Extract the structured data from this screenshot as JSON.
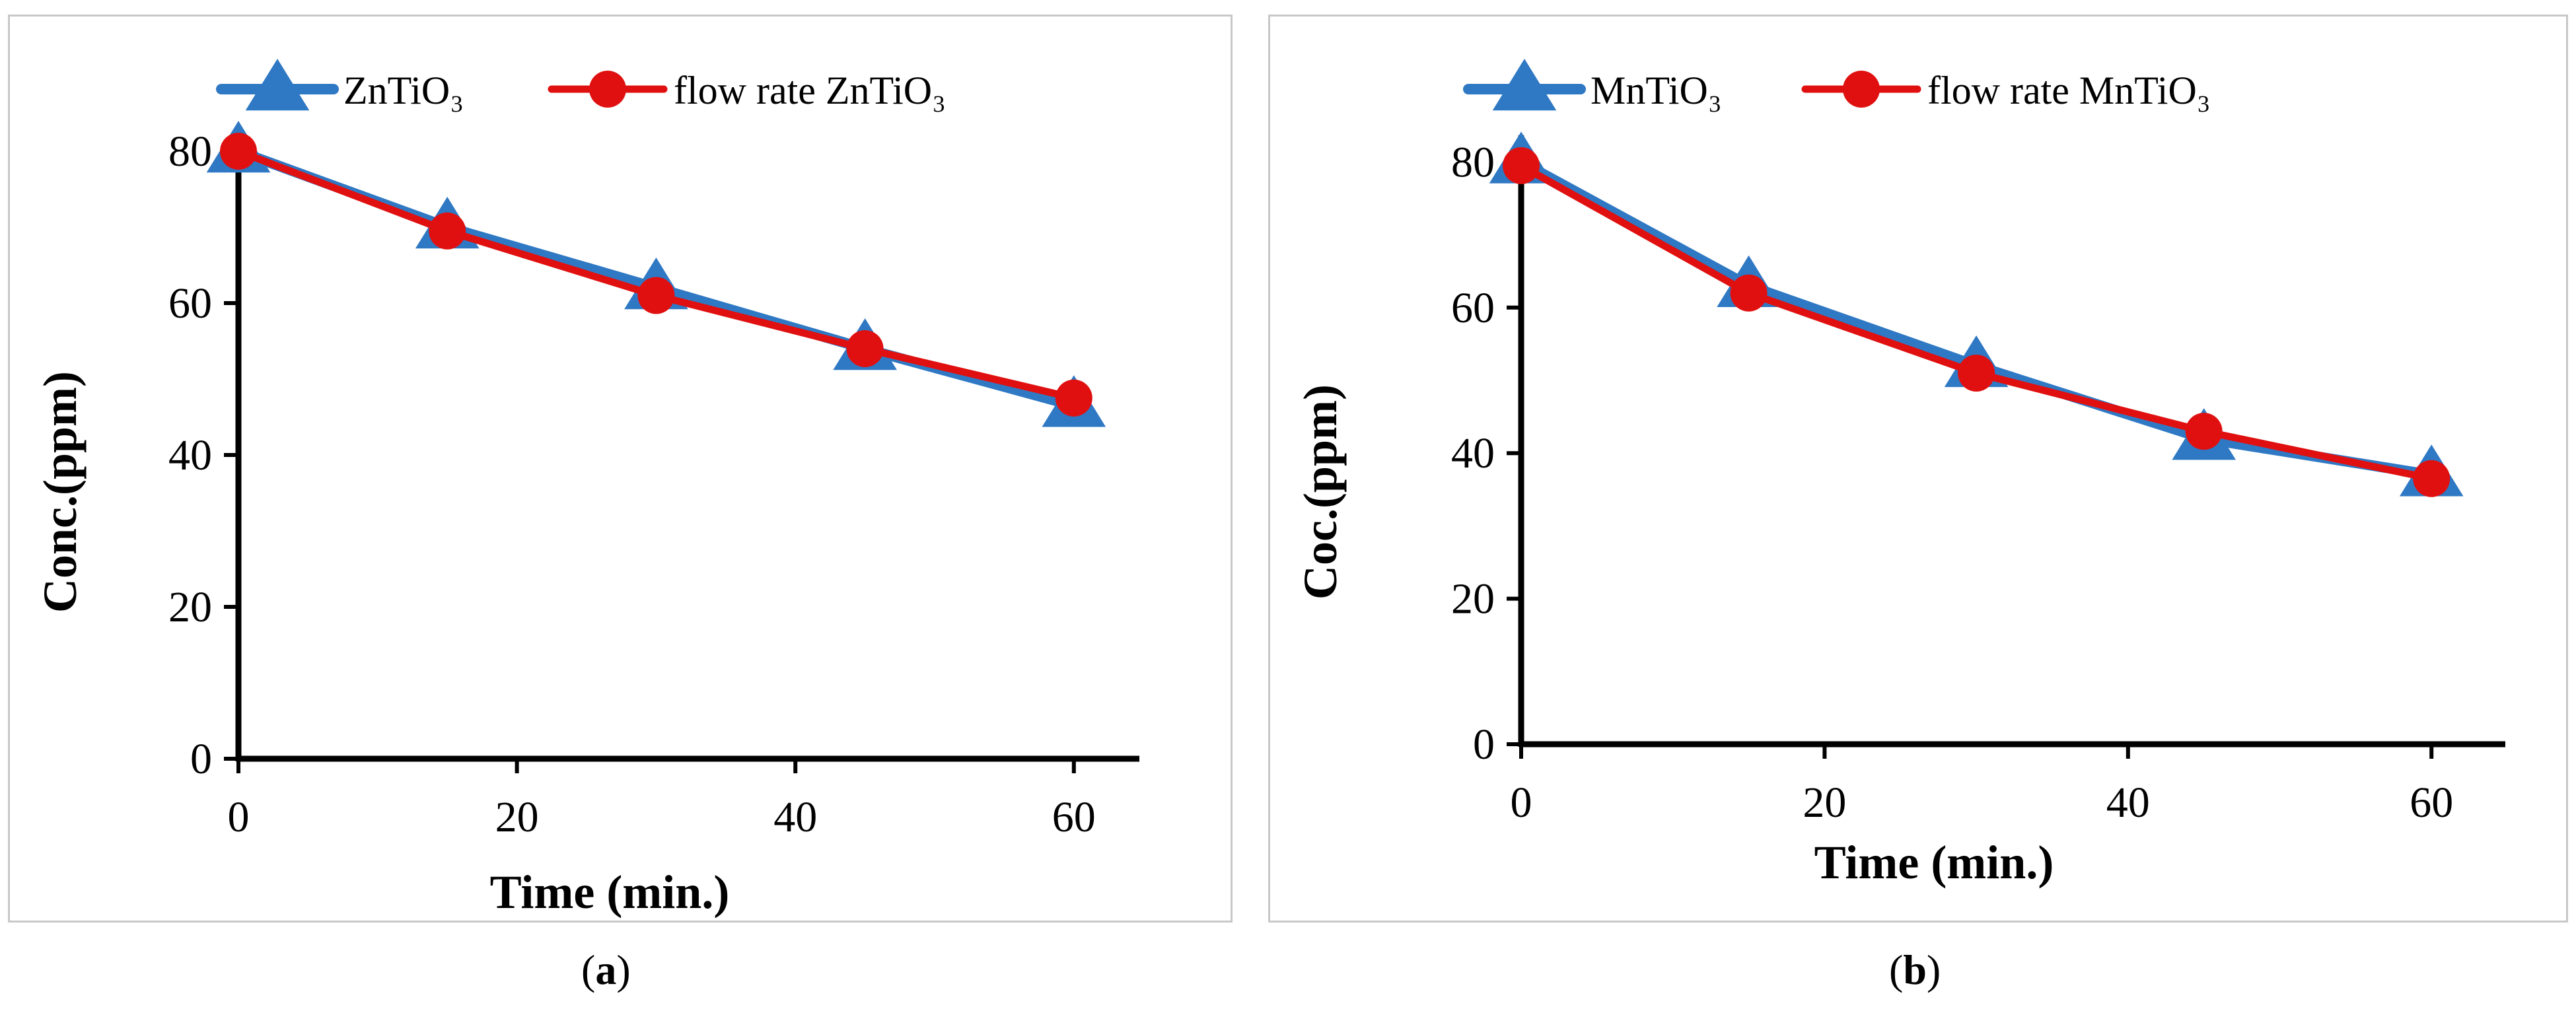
{
  "chart_data": [
    {
      "type": "line",
      "panel": "a",
      "caption": "a",
      "xlabel": "Time (min.)",
      "ylabel": "Conc.(ppm)",
      "xlim": [
        0,
        65
      ],
      "ylim": [
        0,
        80
      ],
      "xticks": [
        0,
        20,
        40,
        60
      ],
      "yticks": [
        0,
        20,
        40,
        60,
        80
      ],
      "grid": false,
      "legend_position": "top",
      "series": [
        {
          "name": "ZnTiO₃",
          "marker": "triangle",
          "color": "#2f78c4",
          "x": [
            0,
            15,
            30,
            45,
            60
          ],
          "values": [
            80,
            70,
            62,
            54,
            46.5
          ]
        },
        {
          "name": "flow rate ZnTiO₃",
          "marker": "circle",
          "color": "#e01010",
          "x": [
            0,
            15,
            30,
            45,
            60
          ],
          "values": [
            80,
            69.5,
            61,
            54,
            47.5
          ]
        }
      ]
    },
    {
      "type": "line",
      "panel": "b",
      "caption": "b",
      "xlabel": "Time (min.)",
      "ylabel": "Coc.(ppm)",
      "xlim": [
        0,
        65
      ],
      "ylim": [
        0,
        80
      ],
      "xticks": [
        0,
        20,
        40,
        60
      ],
      "yticks": [
        0,
        20,
        40,
        60,
        80
      ],
      "grid": false,
      "legend_position": "top",
      "series": [
        {
          "name": "MnTiO₃",
          "marker": "triangle",
          "color": "#2f78c4",
          "x": [
            0,
            15,
            30,
            45,
            60
          ],
          "values": [
            80,
            63,
            52,
            42,
            37
          ]
        },
        {
          "name": "flow rate MnTiO₃",
          "marker": "circle",
          "color": "#e01010",
          "x": [
            0,
            15,
            30,
            45,
            60
          ],
          "values": [
            79.5,
            62,
            51,
            43,
            36.5
          ]
        }
      ]
    }
  ]
}
